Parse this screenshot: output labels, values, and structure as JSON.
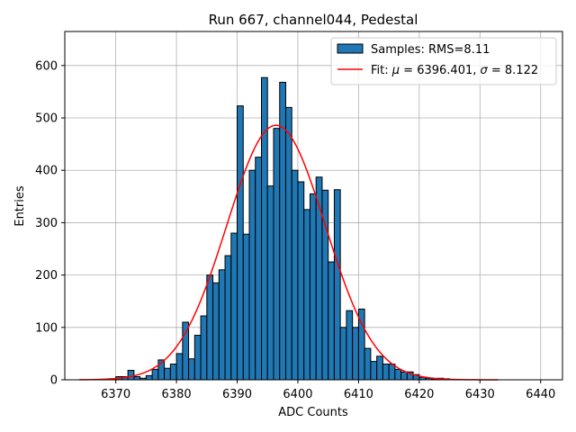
{
  "chart_data": {
    "type": "bar",
    "title": "Run 667, channel044, Pedestal",
    "xlabel": "ADC Counts",
    "ylabel": "Entries",
    "xlim": [
      6361.6,
      6443.6
    ],
    "ylim": [
      0,
      665
    ],
    "xticks": [
      6370,
      6380,
      6390,
      6400,
      6410,
      6420,
      6430,
      6440
    ],
    "yticks": [
      0,
      100,
      200,
      300,
      400,
      500,
      600
    ],
    "grid": true,
    "legend_position": "top-right",
    "colors": {
      "bar_fill": "#1f77b4",
      "bar_edge": "#000000",
      "fit_line": "#ff0000",
      "grid": "#b0b0b0"
    },
    "histogram": {
      "name": "Samples: RMS=8.11",
      "bin_width": 1,
      "bin_starts": [
        6364,
        6365,
        6366,
        6367,
        6368,
        6369,
        6370,
        6371,
        6372,
        6373,
        6374,
        6375,
        6376,
        6377,
        6378,
        6379,
        6380,
        6381,
        6382,
        6383,
        6384,
        6385,
        6386,
        6387,
        6388,
        6389,
        6390,
        6391,
        6392,
        6393,
        6394,
        6395,
        6396,
        6397,
        6398,
        6399,
        6400,
        6401,
        6402,
        6403,
        6404,
        6405,
        6406,
        6407,
        6408,
        6409,
        6410,
        6411,
        6412,
        6413,
        6414,
        6415,
        6416,
        6417,
        6418,
        6419,
        6420,
        6421,
        6422,
        6423,
        6424,
        6425,
        6426,
        6427,
        6428,
        6429,
        6430,
        6431,
        6432,
        6433
      ],
      "counts": [
        0,
        0,
        0,
        0,
        0,
        2,
        6,
        6,
        18,
        6,
        3,
        8,
        20,
        38,
        22,
        30,
        50,
        110,
        40,
        85,
        122,
        200,
        185,
        210,
        237,
        280,
        523,
        278,
        400,
        425,
        577,
        370,
        480,
        568,
        520,
        400,
        378,
        325,
        355,
        387,
        362,
        225,
        363,
        100,
        132,
        100,
        135,
        60,
        35,
        45,
        30,
        30,
        20,
        15,
        15,
        10,
        5,
        3,
        2,
        3,
        2,
        0,
        0,
        0,
        0,
        0,
        0,
        0,
        0,
        0
      ]
    },
    "fit": {
      "name_prefix": "Fit: ",
      "mu_symbol": "μ",
      "mu_value": " = 6396.401, ",
      "sigma_symbol": "σ",
      "sigma_value": " = 8.122",
      "mu": 6396.401,
      "sigma": 8.122,
      "peak": 486,
      "x_range": [
        6364,
        6433
      ]
    }
  }
}
